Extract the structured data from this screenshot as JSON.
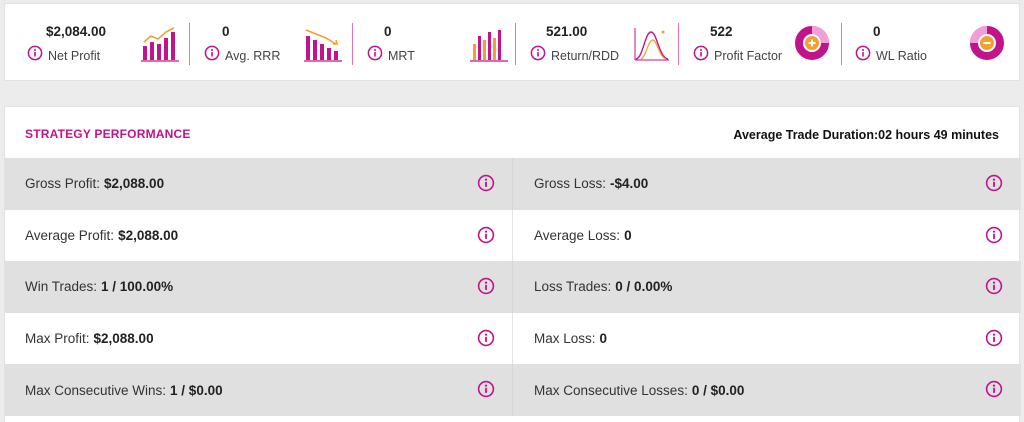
{
  "colors": {
    "accent": "#c0138c",
    "accent_light": "#f6c3e6",
    "orange": "#f2a030",
    "row_shade": "#e0e0e0"
  },
  "stats": [
    {
      "value": "$2,084.00",
      "label": "Net Profit",
      "icon": "bar-chart-up-icon"
    },
    {
      "value": "0",
      "label": "Avg. RRR",
      "icon": "bar-chart-down-icon"
    },
    {
      "value": "0",
      "label": "MRT",
      "icon": "bar-chart-icon"
    },
    {
      "value": "521.00",
      "label": "Return/RDD",
      "icon": "bell-curve-icon"
    },
    {
      "value": "522",
      "label": "Profit Factor",
      "icon": "donut-plus-icon"
    },
    {
      "value": "0",
      "label": "WL Ratio",
      "icon": "donut-minus-icon"
    }
  ],
  "performance": {
    "title": "STRATEGY PERFORMANCE",
    "avg_duration_label": "Average Trade Duration:",
    "avg_duration_value": "02 hours 49 minutes",
    "rows": [
      {
        "left_label": "Gross Profit:",
        "left_value": "$2,088.00",
        "right_label": "Gross Loss:",
        "right_value": "-$4.00"
      },
      {
        "left_label": "Average Profit:",
        "left_value": "$2,088.00",
        "right_label": "Average Loss:",
        "right_value": "0"
      },
      {
        "left_label": "Win Trades:",
        "left_value": "1 / 100.00%",
        "right_label": "Loss Trades:",
        "right_value": "0 / 0.00%"
      },
      {
        "left_label": "Max Profit:",
        "left_value": "$2,088.00",
        "right_label": "Max Loss:",
        "right_value": "0"
      },
      {
        "left_label": "Max Consecutive Wins:",
        "left_value": "1 / $0.00",
        "right_label": "Max Consecutive Losses:",
        "right_value": "0 / $0.00"
      }
    ]
  }
}
